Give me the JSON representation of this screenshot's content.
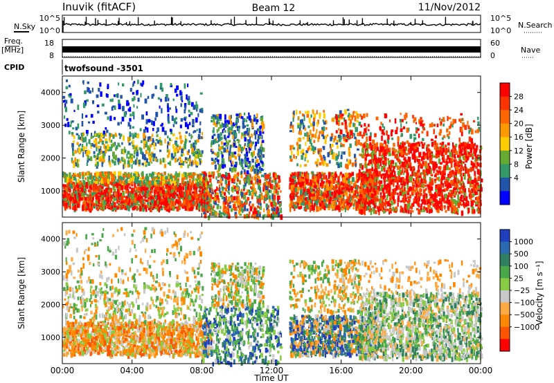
{
  "header": {
    "station": "Inuvik (fitACF)",
    "beam": "Beam 12",
    "date": "11/Nov/2012",
    "nsky_label": "N.Sky",
    "nsearch_label": "N.Search",
    "freq_label": "Freq.",
    "freq_unit": "[MHz]",
    "nave_label": "Nave",
    "cpid_label": "CPID",
    "cpid_value": "twofsound -3501"
  },
  "chart_data": [
    {
      "type": "line",
      "name": "noise",
      "y_left_ticks": [
        "10^5",
        "10^0"
      ],
      "y_right_ticks": [
        "10^5",
        "10^0"
      ]
    },
    {
      "type": "line",
      "name": "freq-nave",
      "y_left_ticks": [
        "18",
        "8"
      ],
      "y_right_ticks": [
        "60",
        "0"
      ]
    },
    {
      "type": "heatmap",
      "name": "power",
      "ylabel": "Slant Range [km]",
      "yticks": [
        1000,
        2000,
        3000,
        4000
      ],
      "ylim": [
        200,
        4500
      ],
      "xlim_hours": [
        0,
        24
      ],
      "colorbar_label": "Power [dB]",
      "colorbar_ticks": [
        "28",
        "24",
        "20",
        "16",
        "12",
        "8",
        "4"
      ],
      "colorbar_colors": [
        "#ff0000",
        "#ff3300",
        "#ff6600",
        "#ff9900",
        "#ffcc00",
        "#66aa33",
        "#339966",
        "#2255aa",
        "#0000ff"
      ]
    },
    {
      "type": "heatmap",
      "name": "velocity",
      "ylabel": "Slant Range [km]",
      "yticks": [
        1000,
        2000,
        3000,
        4000
      ],
      "ylim": [
        200,
        4500
      ],
      "xlim_hours": [
        0,
        24
      ],
      "colorbar_label": "Velocity [m s⁻¹]",
      "colorbar_ticks": [
        "1000",
        "500",
        "100",
        "25",
        "−25",
        "−100",
        "−500",
        "−1000"
      ],
      "colorbar_colors": [
        "#1f3fbf",
        "#2a6ab0",
        "#2f7f60",
        "#4aa84a",
        "#88cc44",
        "#c8c8c8",
        "#ffaa44",
        "#ff8800",
        "#ff5500",
        "#ff0000"
      ]
    }
  ],
  "xaxis": {
    "ticks": [
      "00:00",
      "04:00",
      "08:00",
      "12:00",
      "16:00",
      "20:00",
      "00:00"
    ],
    "label": "Time UT"
  }
}
